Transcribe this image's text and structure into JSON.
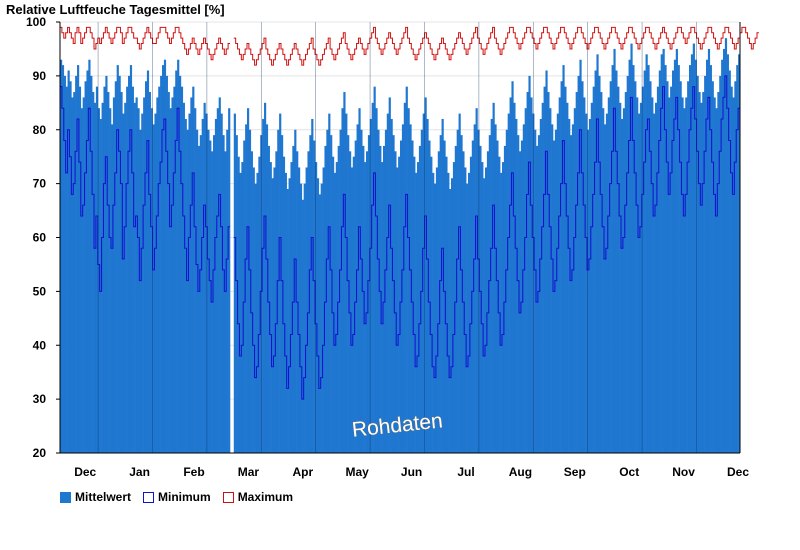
{
  "chart_data": {
    "type": "bar",
    "title": "Relative Luftfeuche Tagesmittel [%]",
    "watermark": "Rohdaten",
    "ylim": [
      20,
      100
    ],
    "yticks": [
      20,
      30,
      40,
      50,
      60,
      70,
      80,
      90,
      100
    ],
    "xticks": [
      "Dec",
      "Jan",
      "Feb",
      "Mar",
      "Apr",
      "May",
      "Jun",
      "Jul",
      "Aug",
      "Sep",
      "Oct",
      "Nov",
      "Dec"
    ],
    "grid": true,
    "legend_position": "bottom-left",
    "series": [
      {
        "name": "Mittelwert",
        "color": "#1f77d0",
        "style": "bar",
        "values": [
          93,
          92,
          90,
          88,
          91,
          89,
          86,
          87,
          90,
          92,
          88,
          84,
          86,
          89,
          91,
          93,
          90,
          87,
          85,
          88,
          84,
          82,
          85,
          88,
          90,
          87,
          84,
          81,
          86,
          89,
          92,
          90,
          87,
          83,
          85,
          88,
          90,
          92,
          88,
          85,
          86,
          84,
          80,
          83,
          86,
          89,
          91,
          87,
          84,
          81,
          83,
          86,
          88,
          90,
          92,
          93,
          90,
          87,
          84,
          86,
          88,
          91,
          93,
          90,
          88,
          85,
          82,
          80,
          83,
          86,
          88,
          84,
          80,
          77,
          79,
          82,
          85,
          83,
          80,
          78,
          76,
          79,
          82,
          84,
          86,
          83,
          79,
          76,
          80,
          84,
          null,
          null,
          83,
          79,
          75,
          72,
          74,
          78,
          81,
          84,
          80,
          76,
          73,
          70,
          72,
          75,
          79,
          82,
          85,
          81,
          77,
          74,
          71,
          73,
          76,
          80,
          83,
          79,
          75,
          72,
          69,
          71,
          74,
          77,
          80,
          76,
          73,
          70,
          67,
          70,
          73,
          76,
          79,
          82,
          78,
          74,
          71,
          68,
          70,
          73,
          77,
          80,
          83,
          79,
          75,
          72,
          74,
          77,
          80,
          84,
          87,
          83,
          79,
          76,
          73,
          75,
          78,
          81,
          84,
          80,
          77,
          74,
          76,
          79,
          82,
          85,
          88,
          84,
          80,
          77,
          74,
          77,
          80,
          83,
          86,
          82,
          79,
          76,
          73,
          75,
          78,
          81,
          85,
          88,
          84,
          81,
          78,
          75,
          72,
          74,
          77,
          80,
          83,
          86,
          82,
          78,
          75,
          72,
          70,
          73,
          76,
          79,
          82,
          78,
          75,
          72,
          69,
          71,
          74,
          77,
          80,
          83,
          79,
          76,
          73,
          70,
          72,
          75,
          78,
          81,
          84,
          80,
          77,
          74,
          71,
          73,
          76,
          79,
          82,
          85,
          81,
          78,
          75,
          72,
          74,
          77,
          80,
          83,
          86,
          89,
          85,
          82,
          79,
          76,
          78,
          81,
          84,
          87,
          90,
          86,
          83,
          80,
          77,
          79,
          82,
          85,
          88,
          91,
          87,
          84,
          81,
          78,
          80,
          83,
          86,
          89,
          92,
          88,
          85,
          82,
          79,
          81,
          84,
          87,
          90,
          93,
          89,
          86,
          83,
          80,
          82,
          85,
          88,
          91,
          94,
          90,
          87,
          84,
          81,
          83,
          86,
          89,
          92,
          95,
          91,
          88,
          85,
          82,
          84,
          87,
          90,
          93,
          96,
          92,
          89,
          86,
          83,
          85,
          88,
          91,
          94,
          92,
          89,
          86,
          83,
          85,
          88,
          91,
          94,
          95,
          92,
          89,
          86,
          88,
          91,
          93,
          95,
          92,
          89,
          86,
          84,
          86,
          89,
          92,
          94,
          96,
          93,
          90,
          87,
          85,
          87,
          90,
          93,
          95,
          92,
          89,
          86,
          84,
          87,
          90,
          93,
          95,
          97,
          94,
          91,
          88,
          86,
          89,
          92,
          94
        ]
      },
      {
        "name": "Minimum",
        "color": "#1010d0",
        "style": "step",
        "values": [
          88,
          84,
          78,
          72,
          80,
          75,
          68,
          70,
          76,
          82,
          74,
          64,
          66,
          72,
          78,
          84,
          76,
          68,
          58,
          64,
          55,
          50,
          60,
          70,
          75,
          66,
          60,
          58,
          66,
          72,
          80,
          76,
          70,
          56,
          62,
          70,
          76,
          80,
          72,
          62,
          64,
          60,
          52,
          58,
          66,
          72,
          78,
          68,
          62,
          54,
          58,
          64,
          70,
          74,
          80,
          82,
          76,
          70,
          62,
          66,
          72,
          78,
          84,
          76,
          70,
          64,
          58,
          52,
          60,
          66,
          72,
          62,
          55,
          50,
          54,
          60,
          66,
          62,
          56,
          52,
          48,
          54,
          60,
          64,
          68,
          62,
          54,
          50,
          56,
          62,
          null,
          null,
          60,
          52,
          44,
          38,
          40,
          48,
          56,
          62,
          54,
          46,
          40,
          34,
          36,
          42,
          50,
          58,
          64,
          56,
          48,
          42,
          36,
          38,
          44,
          52,
          60,
          52,
          44,
          38,
          32,
          36,
          42,
          48,
          56,
          48,
          42,
          36,
          30,
          34,
          40,
          46,
          54,
          60,
          52,
          44,
          38,
          32,
          34,
          40,
          48,
          56,
          62,
          54,
          46,
          40,
          42,
          48,
          54,
          62,
          68,
          60,
          52,
          46,
          40,
          42,
          48,
          54,
          62,
          56,
          50,
          44,
          46,
          52,
          58,
          66,
          72,
          64,
          56,
          50,
          44,
          48,
          54,
          60,
          66,
          58,
          52,
          46,
          40,
          42,
          48,
          54,
          62,
          68,
          60,
          54,
          48,
          42,
          36,
          38,
          44,
          50,
          58,
          64,
          56,
          48,
          42,
          36,
          34,
          38,
          44,
          52,
          58,
          50,
          44,
          38,
          34,
          36,
          42,
          48,
          56,
          62,
          54,
          48,
          42,
          36,
          38,
          44,
          50,
          56,
          64,
          56,
          50,
          44,
          38,
          40,
          46,
          52,
          58,
          66,
          58,
          52,
          46,
          40,
          42,
          48,
          54,
          60,
          66,
          72,
          64,
          58,
          52,
          46,
          48,
          54,
          60,
          68,
          74,
          66,
          60,
          54,
          48,
          50,
          56,
          62,
          68,
          76,
          68,
          62,
          56,
          50,
          52,
          58,
          64,
          70,
          78,
          70,
          64,
          58,
          52,
          54,
          60,
          66,
          72,
          80,
          72,
          66,
          60,
          54,
          56,
          62,
          68,
          74,
          82,
          74,
          68,
          62,
          56,
          58,
          64,
          70,
          76,
          84,
          76,
          70,
          64,
          58,
          60,
          66,
          72,
          78,
          86,
          78,
          72,
          66,
          60,
          62,
          68,
          74,
          80,
          82,
          76,
          70,
          64,
          66,
          72,
          78,
          84,
          88,
          80,
          74,
          68,
          72,
          78,
          82,
          86,
          80,
          74,
          68,
          64,
          68,
          74,
          80,
          84,
          88,
          82,
          76,
          70,
          66,
          70,
          76,
          82,
          86,
          80,
          74,
          68,
          64,
          70,
          76,
          82,
          86,
          90,
          84,
          78,
          72,
          68,
          74,
          80,
          84
        ]
      },
      {
        "name": "Maximum",
        "color": "#d01010",
        "style": "step",
        "values": [
          99,
          98,
          97,
          98,
          99,
          98,
          97,
          96,
          98,
          99,
          98,
          96,
          97,
          98,
          99,
          99,
          98,
          97,
          95,
          96,
          97,
          96,
          97,
          98,
          99,
          98,
          97,
          96,
          97,
          98,
          99,
          99,
          98,
          96,
          97,
          98,
          99,
          99,
          98,
          97,
          97,
          96,
          95,
          96,
          97,
          98,
          99,
          98,
          97,
          96,
          96,
          97,
          98,
          99,
          99,
          99,
          98,
          97,
          96,
          97,
          98,
          99,
          99,
          98,
          97,
          96,
          95,
          94,
          95,
          96,
          97,
          96,
          95,
          94,
          95,
          96,
          97,
          96,
          95,
          94,
          93,
          94,
          95,
          96,
          97,
          96,
          95,
          94,
          95,
          96,
          null,
          null,
          97,
          96,
          95,
          94,
          93,
          94,
          95,
          96,
          95,
          94,
          93,
          92,
          93,
          94,
          95,
          96,
          97,
          95,
          94,
          93,
          92,
          93,
          94,
          95,
          96,
          95,
          94,
          93,
          92,
          93,
          94,
          95,
          96,
          95,
          94,
          93,
          92,
          93,
          94,
          95,
          96,
          97,
          95,
          94,
          93,
          92,
          93,
          94,
          95,
          96,
          97,
          95,
          94,
          93,
          94,
          95,
          96,
          97,
          98,
          96,
          95,
          94,
          93,
          94,
          95,
          96,
          97,
          96,
          95,
          94,
          95,
          96,
          97,
          98,
          99,
          97,
          96,
          95,
          94,
          95,
          96,
          97,
          98,
          97,
          96,
          95,
          94,
          95,
          96,
          97,
          98,
          99,
          97,
          96,
          95,
          94,
          93,
          94,
          95,
          96,
          97,
          98,
          97,
          96,
          95,
          94,
          93,
          94,
          95,
          96,
          97,
          96,
          95,
          94,
          93,
          94,
          95,
          96,
          97,
          98,
          97,
          96,
          95,
          94,
          95,
          96,
          97,
          98,
          99,
          97,
          96,
          95,
          94,
          95,
          96,
          97,
          98,
          99,
          97,
          96,
          95,
          94,
          95,
          96,
          97,
          98,
          99,
          99,
          98,
          97,
          96,
          95,
          96,
          97,
          98,
          99,
          99,
          98,
          97,
          96,
          95,
          96,
          97,
          98,
          99,
          99,
          98,
          97,
          96,
          95,
          96,
          97,
          98,
          99,
          99,
          98,
          97,
          96,
          95,
          96,
          97,
          98,
          99,
          99,
          98,
          97,
          96,
          95,
          96,
          97,
          98,
          99,
          99,
          98,
          97,
          96,
          95,
          96,
          97,
          98,
          99,
          99,
          98,
          97,
          96,
          95,
          96,
          97,
          98,
          99,
          99,
          98,
          97,
          96,
          95,
          96,
          97,
          98,
          99,
          99,
          98,
          97,
          96,
          95,
          96,
          97,
          98,
          99,
          98,
          97,
          96,
          95,
          96,
          97,
          98,
          99,
          99,
          98,
          97,
          96,
          97,
          98,
          99,
          99,
          98,
          97,
          96,
          95,
          96,
          97,
          98,
          99,
          99,
          98,
          97,
          96,
          95,
          96,
          97,
          98,
          99,
          99,
          98,
          97,
          96,
          95,
          96,
          97,
          98,
          99,
          99,
          98,
          97,
          96,
          95,
          96,
          97,
          98
        ]
      }
    ]
  }
}
